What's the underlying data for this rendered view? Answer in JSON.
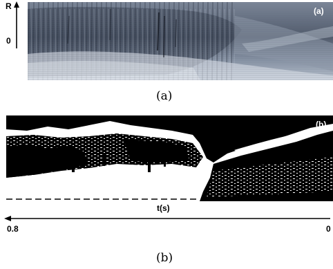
{
  "panel_a": {
    "tag": "(a)",
    "caption": "(a)",
    "r_label": "R",
    "zero_label": "0",
    "colors": {
      "dark": "#2a3140",
      "mid": "#6f7b8e",
      "light": "#d4dbe4"
    }
  },
  "panel_b": {
    "tag": "(b)",
    "caption": "(b)",
    "colors": {
      "fg": "#000000",
      "bg": "#ffffff"
    }
  },
  "time_axis": {
    "label": "t(s)",
    "left_value": "0.8",
    "right_value": "0"
  }
}
